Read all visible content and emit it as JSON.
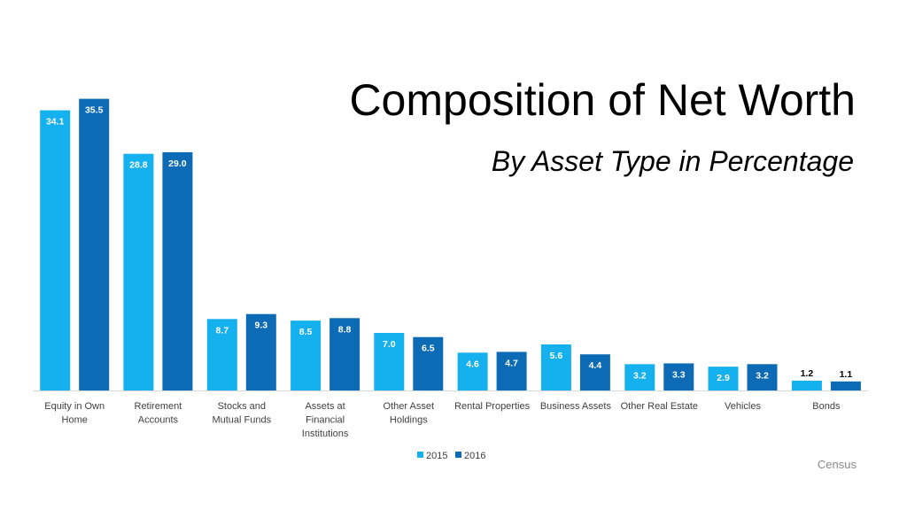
{
  "title": "Composition of Net Worth",
  "subtitle": "By Asset Type in Percentage",
  "source": "Census",
  "chart_data": {
    "type": "bar",
    "categories": [
      [
        "Equity in Own",
        "Home"
      ],
      [
        "Retirement",
        "Accounts"
      ],
      [
        "Stocks and",
        "Mutual Funds"
      ],
      [
        "Assets at",
        "Financial",
        "Institutions"
      ],
      [
        "Other Asset",
        "Holdings"
      ],
      [
        "Rental Properties"
      ],
      [
        "Business Assets"
      ],
      [
        "Other Real Estate"
      ],
      [
        "Vehicles"
      ],
      [
        "Bonds"
      ]
    ],
    "series": [
      {
        "name": "2015",
        "color": "#15b0ee",
        "values": [
          34.1,
          28.8,
          8.7,
          8.5,
          7.0,
          4.6,
          5.6,
          3.2,
          2.9,
          1.2
        ]
      },
      {
        "name": "2016",
        "color": "#0c6bb4",
        "values": [
          35.5,
          29.0,
          9.3,
          8.8,
          6.5,
          4.7,
          4.4,
          3.3,
          3.2,
          1.1
        ]
      }
    ],
    "value_labels": [
      [
        "34.1",
        "28.8",
        "8.7",
        "8.5",
        "7.0",
        "4.6",
        "5.6",
        "3.2",
        "2.9",
        "1.2"
      ],
      [
        "35.5",
        "29.0",
        "9.3",
        "8.8",
        "6.5",
        "4.7",
        "4.4",
        "3.3",
        "3.2",
        "1.1"
      ]
    ],
    "ylim": [
      0,
      36
    ],
    "grid": false,
    "legend_position": "bottom-center"
  }
}
